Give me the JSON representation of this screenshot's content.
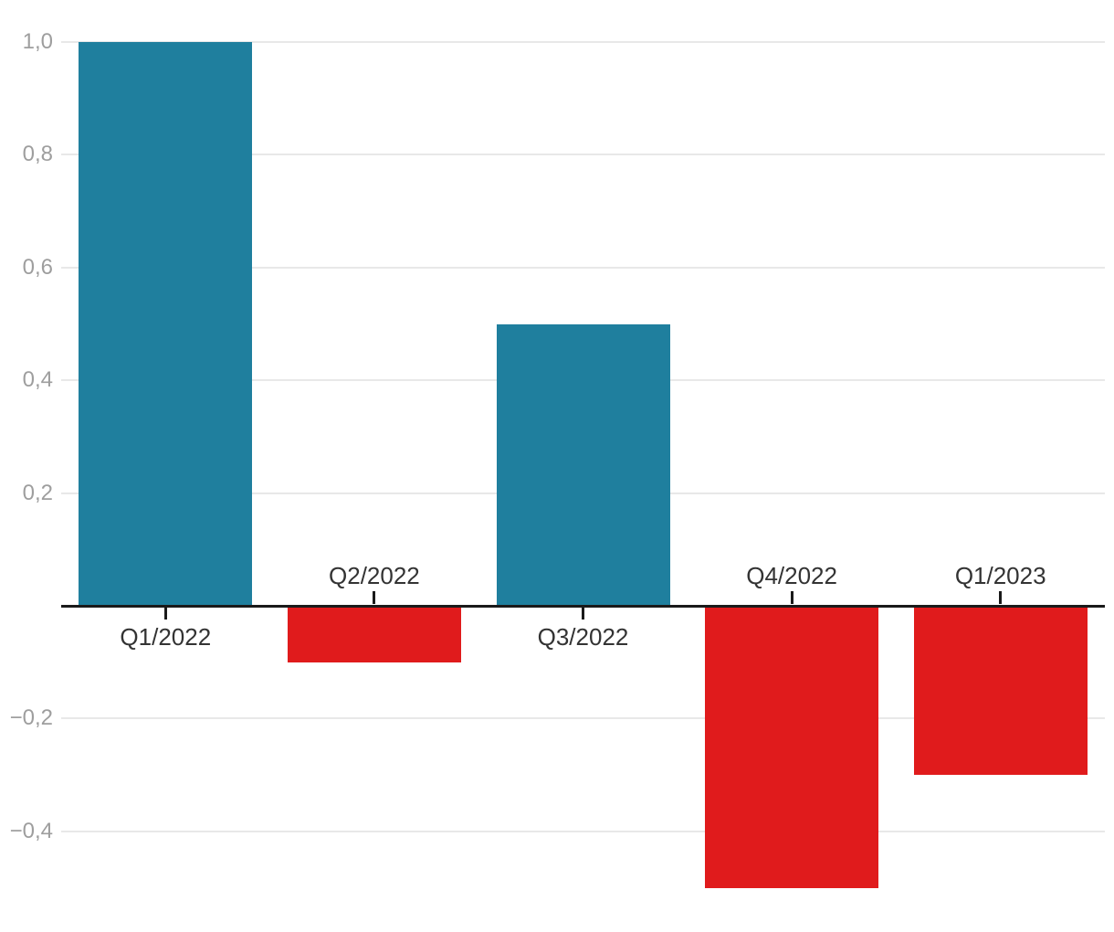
{
  "chart_data": {
    "type": "bar",
    "categories": [
      "Q1/2022",
      "Q2/2022",
      "Q3/2022",
      "Q4/2022",
      "Q1/2023"
    ],
    "values": [
      1.0,
      -0.1,
      0.5,
      -0.5,
      -0.3
    ],
    "title": "",
    "xlabel": "",
    "ylabel": "",
    "ylim": [
      -0.58,
      1.0
    ],
    "yticks": [
      1.0,
      0.8,
      0.6,
      0.4,
      0.2,
      -0.2,
      -0.4
    ],
    "ytick_labels": [
      "1,0",
      "0,8",
      "0,6",
      "0,4",
      "0,2",
      "−0,2",
      "−0,4"
    ],
    "grid": true,
    "legend": false,
    "label_side_rule": "positive bars labeled below axis, negative bars labeled above axis",
    "colors": {
      "positive_bar": "#1f7f9e",
      "negative_bar": "#e01b1c",
      "axis_line": "#1a1a1a",
      "tick_mark": "#1a1a1a",
      "gridline": "#e8e8e8",
      "ytick_label": "#9e9e9e",
      "xtick_label": "#333333",
      "background": "#ffffff"
    }
  }
}
